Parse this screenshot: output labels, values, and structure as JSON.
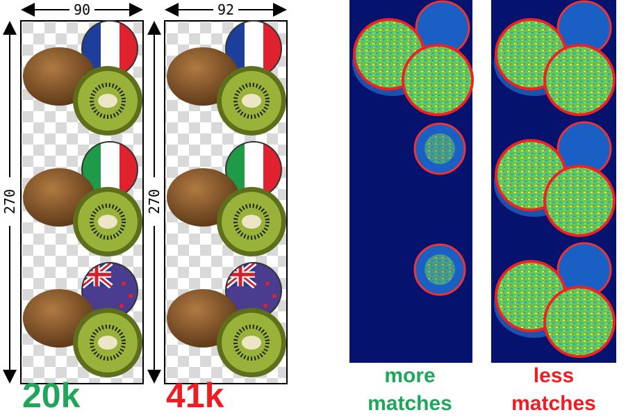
{
  "panels": [
    {
      "width_label": 90,
      "height_label": 270,
      "result": "20k"
    },
    {
      "width_label": 92,
      "height_label": 270,
      "result": "41k"
    }
  ],
  "heatmaps": [
    {
      "label_line_1": "more",
      "label_line_2": "matches"
    },
    {
      "label_line_1": "less",
      "label_line_2": "matches"
    }
  ]
}
